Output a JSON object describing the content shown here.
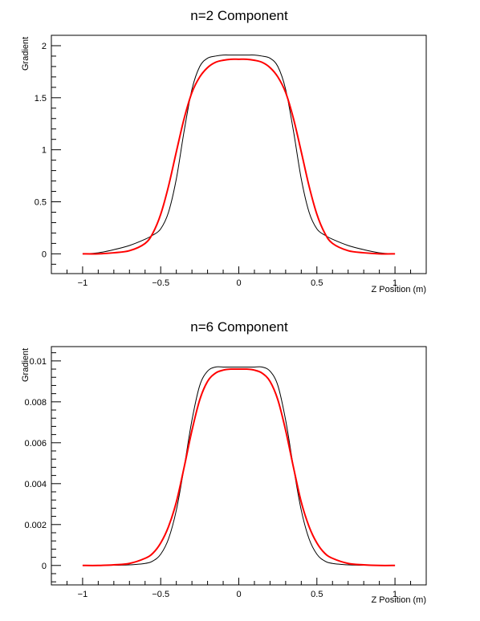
{
  "chart_data": [
    {
      "type": "line",
      "title": "n=2 Component",
      "xlabel": "Z Position (m)",
      "ylabel": "Gradient",
      "xlim": [
        -1.2,
        1.2
      ],
      "ylim": [
        -0.19,
        2.1
      ],
      "xticks": [
        -1,
        -0.5,
        0,
        0.5,
        1
      ],
      "xtick_labels": [
        "−1",
        "−0.5",
        "0",
        "0.5",
        "1"
      ],
      "yticks": [
        0,
        0.5,
        1,
        1.5,
        2
      ],
      "ytick_labels": [
        "0",
        "0.5",
        "1",
        "1.5",
        "2"
      ],
      "grid": false,
      "series": [
        {
          "color": "#000000",
          "x": [
            -1.0,
            -0.9,
            -0.8,
            -0.7,
            -0.6,
            -0.55,
            -0.5,
            -0.45,
            -0.4,
            -0.35,
            -0.3,
            -0.25,
            -0.2,
            -0.15,
            -0.1,
            -0.05,
            0.0,
            0.05,
            0.1,
            0.15,
            0.2,
            0.25,
            0.3,
            0.35,
            0.4,
            0.45,
            0.5,
            0.55,
            0.6,
            0.7,
            0.8,
            0.9,
            1.0
          ],
          "values": [
            0.0,
            0.01,
            0.04,
            0.08,
            0.14,
            0.18,
            0.24,
            0.4,
            0.72,
            1.18,
            1.58,
            1.8,
            1.88,
            1.9,
            1.91,
            1.91,
            1.91,
            1.91,
            1.91,
            1.9,
            1.88,
            1.8,
            1.58,
            1.18,
            0.72,
            0.4,
            0.24,
            0.18,
            0.14,
            0.08,
            0.04,
            0.01,
            0.0
          ]
        },
        {
          "color": "#ff0000",
          "x": [
            -1.0,
            -0.9,
            -0.8,
            -0.7,
            -0.6,
            -0.55,
            -0.5,
            -0.45,
            -0.4,
            -0.35,
            -0.3,
            -0.25,
            -0.2,
            -0.15,
            -0.1,
            -0.05,
            0.0,
            0.05,
            0.1,
            0.15,
            0.2,
            0.25,
            0.3,
            0.35,
            0.4,
            0.45,
            0.5,
            0.55,
            0.6,
            0.7,
            0.8,
            0.9,
            1.0
          ],
          "values": [
            0.0,
            0.0,
            0.01,
            0.03,
            0.1,
            0.2,
            0.38,
            0.65,
            0.98,
            1.3,
            1.55,
            1.7,
            1.79,
            1.84,
            1.86,
            1.87,
            1.87,
            1.87,
            1.86,
            1.84,
            1.79,
            1.7,
            1.55,
            1.3,
            0.98,
            0.65,
            0.38,
            0.2,
            0.1,
            0.03,
            0.01,
            0.0,
            0.0
          ]
        }
      ]
    },
    {
      "type": "line",
      "title": "n=6 Component",
      "xlabel": "Z Position (m)",
      "ylabel": "Gradient",
      "xlim": [
        -1.2,
        1.2
      ],
      "ylim": [
        -0.00095,
        0.0107
      ],
      "xticks": [
        -1,
        -0.5,
        0,
        0.5,
        1
      ],
      "xtick_labels": [
        "−1",
        "−0.5",
        "0",
        "0.5",
        "1"
      ],
      "yticks": [
        0,
        0.002,
        0.004,
        0.006,
        0.008,
        0.01
      ],
      "ytick_labels": [
        "0",
        "0.002",
        "0.004",
        "0.006",
        "0.008",
        "0.01"
      ],
      "grid": false,
      "series": [
        {
          "color": "#000000",
          "x": [
            -1.0,
            -0.9,
            -0.8,
            -0.7,
            -0.6,
            -0.55,
            -0.5,
            -0.45,
            -0.4,
            -0.35,
            -0.3,
            -0.25,
            -0.2,
            -0.15,
            -0.1,
            -0.05,
            0.0,
            0.05,
            0.1,
            0.15,
            0.2,
            0.25,
            0.3,
            0.35,
            0.4,
            0.45,
            0.5,
            0.55,
            0.6,
            0.7,
            0.8,
            0.9,
            1.0
          ],
          "values": [
            0.0,
            0.0,
            1e-05,
            3e-05,
            0.0001,
            0.00022,
            0.00055,
            0.0013,
            0.0027,
            0.0048,
            0.0071,
            0.0088,
            0.0095,
            0.0097,
            0.0097,
            0.0097,
            0.0097,
            0.0097,
            0.0097,
            0.0097,
            0.0095,
            0.0088,
            0.0071,
            0.0048,
            0.0027,
            0.0013,
            0.00055,
            0.00022,
            0.0001,
            3e-05,
            1e-05,
            0.0,
            0.0
          ]
        },
        {
          "color": "#ff0000",
          "x": [
            -1.0,
            -0.9,
            -0.8,
            -0.7,
            -0.6,
            -0.55,
            -0.5,
            -0.45,
            -0.4,
            -0.35,
            -0.3,
            -0.25,
            -0.2,
            -0.15,
            -0.1,
            -0.05,
            0.0,
            0.05,
            0.1,
            0.15,
            0.2,
            0.25,
            0.3,
            0.35,
            0.4,
            0.45,
            0.5,
            0.55,
            0.6,
            0.7,
            0.8,
            0.9,
            1.0
          ],
          "values": [
            0.0,
            0.0,
            3e-05,
            0.0001,
            0.00035,
            0.0006,
            0.0011,
            0.0019,
            0.0031,
            0.0048,
            0.0066,
            0.0081,
            0.009,
            0.0094,
            0.00955,
            0.0096,
            0.0096,
            0.0096,
            0.00955,
            0.0094,
            0.009,
            0.0081,
            0.0066,
            0.0048,
            0.0031,
            0.0019,
            0.0011,
            0.0006,
            0.00035,
            0.0001,
            3e-05,
            0.0,
            0.0
          ]
        }
      ]
    }
  ]
}
